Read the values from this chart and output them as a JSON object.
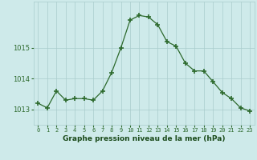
{
  "hours": [
    0,
    1,
    2,
    3,
    4,
    5,
    6,
    7,
    8,
    9,
    10,
    11,
    12,
    13,
    14,
    15,
    16,
    17,
    18,
    19,
    20,
    21,
    22,
    23
  ],
  "pressure": [
    1013.2,
    1013.05,
    1013.6,
    1013.3,
    1013.35,
    1013.35,
    1013.3,
    1013.6,
    1014.2,
    1015.0,
    1015.9,
    1016.05,
    1016.0,
    1015.75,
    1015.2,
    1015.05,
    1014.5,
    1014.25,
    1014.25,
    1013.9,
    1013.55,
    1013.35,
    1013.05,
    1012.95
  ],
  "line_color": "#2d6a2d",
  "marker_color": "#2d6a2d",
  "bg_color": "#ceeaea",
  "grid_color": "#aacccc",
  "xlabel": "Graphe pression niveau de la mer (hPa)",
  "xlabel_color": "#1a4a1a",
  "tick_color": "#2d6a2d",
  "ylim_min": 1012.5,
  "ylim_max": 1016.5,
  "yticks": [
    1013,
    1014,
    1015
  ],
  "figsize": [
    3.2,
    2.0
  ],
  "dpi": 100
}
